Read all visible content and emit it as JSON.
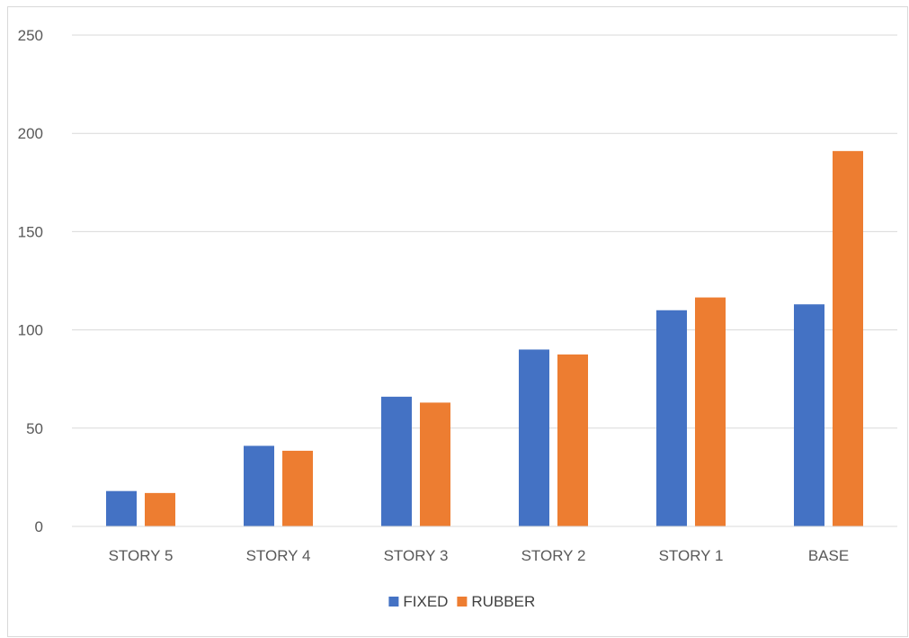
{
  "chart_data": {
    "type": "bar",
    "title": "",
    "xlabel": "",
    "ylabel": "",
    "categories": [
      "STORY 5",
      "STORY 4",
      "STORY 3",
      "STORY 2",
      "STORY 1",
      "BASE"
    ],
    "series": [
      {
        "name": "FIXED",
        "color": "#4472c4",
        "values": [
          18,
          41,
          66,
          90,
          110,
          113
        ]
      },
      {
        "name": "RUBBER",
        "color": "#ed7d31",
        "values": [
          17,
          38.5,
          63,
          87.5,
          116.5,
          191
        ]
      }
    ],
    "ylim": [
      0,
      250
    ],
    "yticks": [
      "0",
      "50",
      "100",
      "150",
      "200",
      "250"
    ],
    "grid": true,
    "legend": "bottom"
  }
}
